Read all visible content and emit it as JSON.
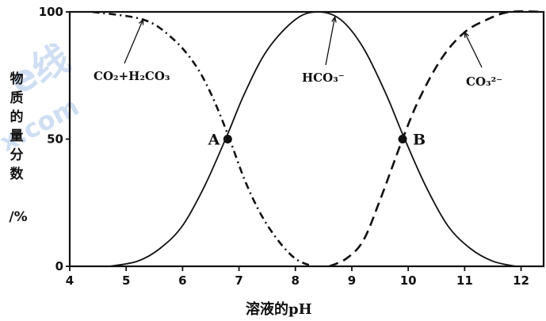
{
  "chart_data": {
    "type": "line",
    "xlabel": "溶液的pH",
    "ylabel_chars": [
      "物",
      "质",
      "的",
      "量",
      "分",
      "数"
    ],
    "ylabel_unit": "/%",
    "xlim": [
      4,
      12.4
    ],
    "ylim": [
      0,
      100
    ],
    "xticks": [
      "4",
      "5",
      "6",
      "7",
      "8",
      "9",
      "10",
      "11",
      "12"
    ],
    "yticks": [
      "0",
      "50",
      "100"
    ],
    "series": [
      {
        "name": "CO2+H2CO3",
        "style": "dash-dot",
        "points": [
          [
            4.4,
            100
          ],
          [
            5.3,
            97
          ],
          [
            5.8,
            90
          ],
          [
            6.2,
            80
          ],
          [
            6.5,
            68
          ],
          [
            6.8,
            52
          ],
          [
            7.1,
            34
          ],
          [
            7.4,
            20
          ],
          [
            7.7,
            10
          ],
          [
            8.0,
            3
          ],
          [
            8.3,
            0
          ]
        ]
      },
      {
        "name": "HCO3-",
        "style": "solid",
        "points": [
          [
            4.7,
            0
          ],
          [
            5.2,
            2
          ],
          [
            5.6,
            7
          ],
          [
            6.0,
            16
          ],
          [
            6.4,
            32
          ],
          [
            6.8,
            52
          ],
          [
            7.1,
            68
          ],
          [
            7.5,
            85
          ],
          [
            8.0,
            97
          ],
          [
            8.4,
            100
          ],
          [
            8.8,
            97
          ],
          [
            9.2,
            86
          ],
          [
            9.6,
            68
          ],
          [
            9.9,
            52
          ],
          [
            10.3,
            32
          ],
          [
            10.7,
            16
          ],
          [
            11.1,
            7
          ],
          [
            11.5,
            2
          ],
          [
            11.9,
            0
          ]
        ]
      },
      {
        "name": "CO3 2-",
        "style": "dashed",
        "points": [
          [
            8.6,
            0
          ],
          [
            8.9,
            3
          ],
          [
            9.2,
            10
          ],
          [
            9.5,
            26
          ],
          [
            9.9,
            50
          ],
          [
            10.2,
            66
          ],
          [
            10.6,
            82
          ],
          [
            11.0,
            92
          ],
          [
            11.4,
            97
          ],
          [
            11.8,
            100
          ],
          [
            12.4,
            100
          ]
        ]
      }
    ],
    "points": [
      {
        "label": "A",
        "x": 6.8,
        "y": 50
      },
      {
        "label": "B",
        "x": 9.9,
        "y": 50
      }
    ],
    "annotations": [
      {
        "text": "CO₂+H₂CO₃",
        "target_x": 5.3,
        "target_y": 97
      },
      {
        "text": "HCO₃⁻",
        "target_x": 8.7,
        "target_y": 98
      },
      {
        "text": "CO₃²⁻",
        "target_x": 11.0,
        "target_y": 92
      }
    ],
    "grid": false
  }
}
